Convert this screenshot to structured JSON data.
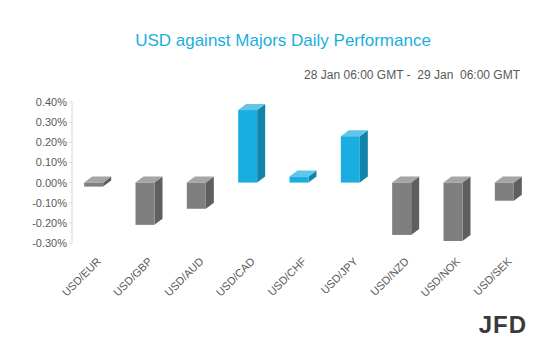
{
  "chart_data": {
    "type": "bar",
    "title": "USD against Majors Daily Performance",
    "subtitle": "28 Jan 06:00 GMT -  29 Jan  06:00 GMT",
    "categories": [
      "USD/EUR",
      "USD/GBP",
      "USD/AUD",
      "USD/CAD",
      "USD/CHF",
      "USD/JPY",
      "USD/NZD",
      "USD/NOK",
      "USD/SEK"
    ],
    "values": [
      -0.02,
      -0.21,
      -0.13,
      0.36,
      0.03,
      0.23,
      -0.26,
      -0.29,
      -0.09
    ],
    "colors": [
      "#7f7f7f",
      "#7f7f7f",
      "#7f7f7f",
      "#1aaee0",
      "#1aaee0",
      "#1aaee0",
      "#7f7f7f",
      "#7f7f7f",
      "#7f7f7f"
    ],
    "ylim": [
      -0.3,
      0.4
    ],
    "yticks": [
      {
        "value": -0.3,
        "label": "-0.30%"
      },
      {
        "value": -0.2,
        "label": "-0.20%"
      },
      {
        "value": -0.1,
        "label": "-0.10%"
      },
      {
        "value": 0,
        "label": "0.00%"
      },
      {
        "value": 0.1,
        "label": "0.10%"
      },
      {
        "value": 0.2,
        "label": "0.20%"
      },
      {
        "value": 0.3,
        "label": "0.30%"
      },
      {
        "value": 0.4,
        "label": "0.40%"
      }
    ],
    "grid": false,
    "annotations": [
      "JFD"
    ]
  }
}
